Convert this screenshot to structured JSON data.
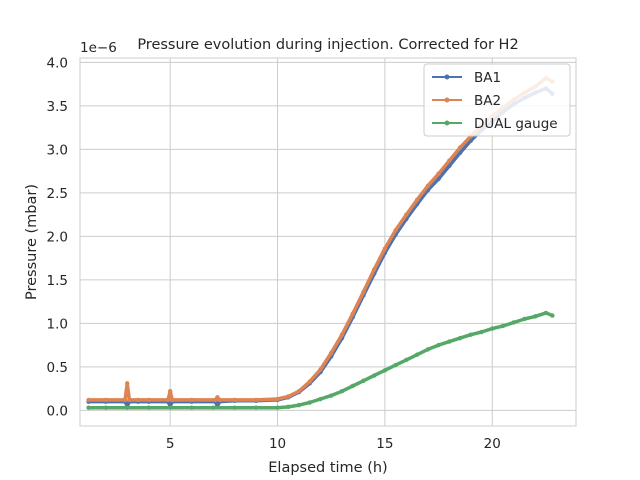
{
  "chart_data": {
    "type": "line",
    "title": "Pressure evolution during injection. Corrected for H2",
    "xlabel": "Elapsed time (h)",
    "ylabel": "Pressure (mbar)",
    "y_offset_label": "1e−6",
    "xlim": [
      0.8,
      23.9
    ],
    "ylim": [
      -0.18,
      4.05
    ],
    "xticks": [
      5,
      10,
      15,
      20
    ],
    "yticks": [
      0.0,
      0.5,
      1.0,
      1.5,
      2.0,
      2.5,
      3.0,
      3.5,
      4.0
    ],
    "ytick_labels": [
      "0.0",
      "0.5",
      "1.0",
      "1.5",
      "2.0",
      "2.5",
      "3.0",
      "3.5",
      "4.0"
    ],
    "grid": true,
    "legend_position": "top-right",
    "series": [
      {
        "name": "BA1",
        "color": "#4c72b0",
        "x": [
          1.2,
          2.0,
          2.9,
          3.0,
          3.1,
          3.5,
          4.0,
          4.9,
          5.0,
          5.1,
          6.0,
          7.1,
          7.2,
          7.3,
          8.0,
          9.0,
          10.0,
          10.5,
          11.0,
          11.5,
          12.0,
          12.5,
          13.0,
          13.5,
          14.0,
          14.5,
          15.0,
          15.5,
          16.0,
          16.5,
          17.0,
          17.5,
          18.0,
          18.5,
          19.0,
          19.5,
          20.0,
          20.5,
          21.0,
          21.5,
          22.0,
          22.5,
          22.8
        ],
        "y": [
          0.1,
          0.1,
          0.1,
          0.05,
          0.1,
          0.1,
          0.1,
          0.1,
          0.05,
          0.1,
          0.1,
          0.1,
          0.05,
          0.1,
          0.11,
          0.11,
          0.12,
          0.15,
          0.21,
          0.31,
          0.44,
          0.62,
          0.83,
          1.07,
          1.32,
          1.57,
          1.81,
          2.02,
          2.2,
          2.37,
          2.53,
          2.66,
          2.81,
          2.96,
          3.1,
          3.22,
          3.32,
          3.43,
          3.52,
          3.59,
          3.65,
          3.7,
          3.64
        ]
      },
      {
        "name": "BA2",
        "color": "#dd8452",
        "x": [
          1.2,
          2.0,
          2.9,
          3.0,
          3.1,
          3.5,
          4.0,
          4.9,
          5.0,
          5.1,
          6.0,
          7.1,
          7.2,
          7.3,
          8.0,
          9.0,
          10.0,
          10.5,
          11.0,
          11.5,
          12.0,
          12.5,
          13.0,
          13.5,
          14.0,
          14.5,
          15.0,
          15.5,
          16.0,
          16.5,
          17.0,
          17.5,
          18.0,
          18.5,
          19.0,
          19.5,
          20.0,
          20.5,
          21.0,
          21.5,
          22.0,
          22.5,
          22.8
        ],
        "y": [
          0.12,
          0.12,
          0.12,
          0.31,
          0.12,
          0.12,
          0.12,
          0.12,
          0.22,
          0.12,
          0.12,
          0.12,
          0.15,
          0.12,
          0.12,
          0.12,
          0.13,
          0.16,
          0.22,
          0.33,
          0.47,
          0.66,
          0.87,
          1.11,
          1.36,
          1.62,
          1.86,
          2.07,
          2.25,
          2.42,
          2.58,
          2.72,
          2.87,
          3.02,
          3.15,
          3.28,
          3.38,
          3.48,
          3.57,
          3.65,
          3.72,
          3.82,
          3.78
        ]
      },
      {
        "name": "DUAL gauge",
        "color": "#55a868",
        "x": [
          1.2,
          2.0,
          3.0,
          4.0,
          5.0,
          6.0,
          7.0,
          8.0,
          9.0,
          10.0,
          10.5,
          11.0,
          11.5,
          12.0,
          12.5,
          13.0,
          13.5,
          14.0,
          14.5,
          15.0,
          15.5,
          16.0,
          16.5,
          17.0,
          17.5,
          18.0,
          18.5,
          19.0,
          19.5,
          20.0,
          20.5,
          21.0,
          21.5,
          22.0,
          22.5,
          22.8
        ],
        "y": [
          0.03,
          0.03,
          0.03,
          0.03,
          0.03,
          0.03,
          0.03,
          0.03,
          0.03,
          0.03,
          0.04,
          0.06,
          0.09,
          0.13,
          0.17,
          0.22,
          0.28,
          0.34,
          0.4,
          0.46,
          0.52,
          0.58,
          0.64,
          0.7,
          0.75,
          0.79,
          0.83,
          0.87,
          0.9,
          0.94,
          0.97,
          1.01,
          1.05,
          1.08,
          1.12,
          1.09
        ]
      }
    ]
  }
}
